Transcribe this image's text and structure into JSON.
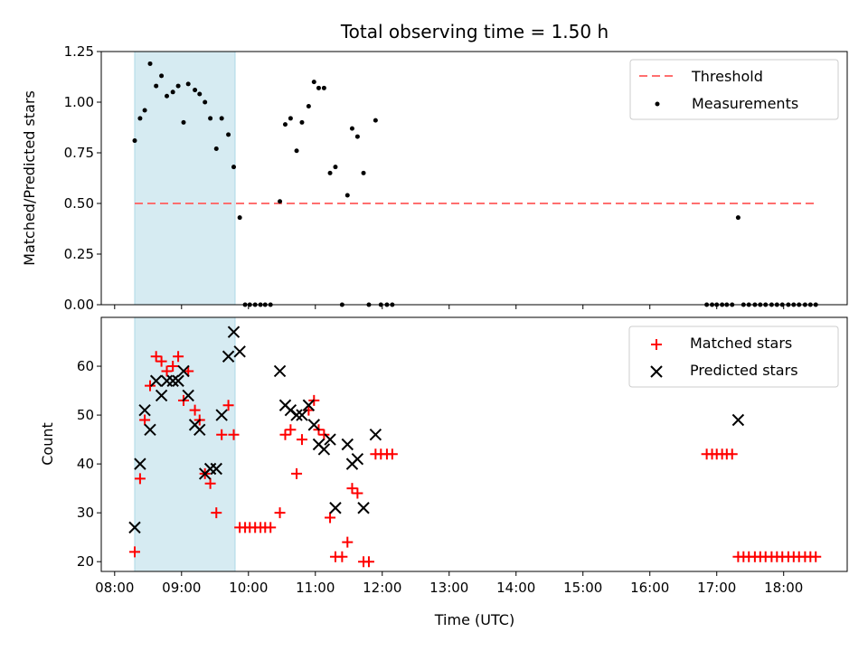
{
  "chart_data": {
    "title": "Total observing time = 1.50 h",
    "xlabel": "Time (UTC)",
    "x_ticks": [
      "08:00",
      "09:00",
      "10:00",
      "11:00",
      "12:00",
      "13:00",
      "14:00",
      "15:00",
      "16:00",
      "17:00",
      "18:00"
    ],
    "x_range_hours": [
      7.8,
      18.95
    ],
    "highlight_span_hours": [
      8.3,
      9.8
    ],
    "highlight_color": "#add8e6",
    "panels": [
      {
        "type": "scatter",
        "ylabel": "Matched/Predicted stars",
        "ylim": [
          0,
          1.25
        ],
        "y_ticks": [
          "0.00",
          "0.25",
          "0.50",
          "0.75",
          "1.00",
          "1.25"
        ],
        "threshold": {
          "name": "Threshold",
          "value": 0.5,
          "x_range": [
            8.3,
            18.5
          ],
          "color": "#ff6f6f"
        },
        "series": [
          {
            "name": "Measurements",
            "marker": "dot",
            "color": "#000000",
            "points": [
              [
                8.3,
                0.81
              ],
              [
                8.38,
                0.92
              ],
              [
                8.45,
                0.96
              ],
              [
                8.53,
                1.19
              ],
              [
                8.62,
                1.08
              ],
              [
                8.7,
                1.13
              ],
              [
                8.78,
                1.03
              ],
              [
                8.87,
                1.05
              ],
              [
                8.95,
                1.08
              ],
              [
                9.03,
                0.9
              ],
              [
                9.1,
                1.09
              ],
              [
                9.2,
                1.06
              ],
              [
                9.27,
                1.04
              ],
              [
                9.35,
                1.0
              ],
              [
                9.43,
                0.92
              ],
              [
                9.52,
                0.77
              ],
              [
                9.6,
                0.92
              ],
              [
                9.7,
                0.84
              ],
              [
                9.78,
                0.68
              ],
              [
                9.87,
                0.43
              ],
              [
                9.95,
                0.0
              ],
              [
                10.02,
                0.0
              ],
              [
                10.1,
                0.0
              ],
              [
                10.18,
                0.0
              ],
              [
                10.25,
                0.0
              ],
              [
                10.33,
                0.0
              ],
              [
                10.47,
                0.51
              ],
              [
                10.55,
                0.89
              ],
              [
                10.63,
                0.92
              ],
              [
                10.72,
                0.76
              ],
              [
                10.8,
                0.9
              ],
              [
                10.9,
                0.98
              ],
              [
                10.98,
                1.1
              ],
              [
                11.05,
                1.07
              ],
              [
                11.13,
                1.07
              ],
              [
                11.22,
                0.65
              ],
              [
                11.3,
                0.68
              ],
              [
                11.4,
                0.0
              ],
              [
                11.48,
                0.54
              ],
              [
                11.55,
                0.87
              ],
              [
                11.63,
                0.83
              ],
              [
                11.72,
                0.65
              ],
              [
                11.8,
                0.0
              ],
              [
                11.9,
                0.91
              ],
              [
                11.98,
                0.0
              ],
              [
                12.07,
                0.0
              ],
              [
                12.15,
                0.0
              ],
              [
                16.85,
                0.0
              ],
              [
                16.93,
                0.0
              ],
              [
                17.0,
                0.0
              ],
              [
                17.08,
                0.0
              ],
              [
                17.15,
                0.0
              ],
              [
                17.23,
                0.0
              ],
              [
                17.32,
                0.43
              ],
              [
                17.4,
                0.0
              ],
              [
                17.48,
                0.0
              ],
              [
                17.57,
                0.0
              ],
              [
                17.65,
                0.0
              ],
              [
                17.73,
                0.0
              ],
              [
                17.82,
                0.0
              ],
              [
                17.9,
                0.0
              ],
              [
                17.98,
                0.0
              ],
              [
                18.07,
                0.0
              ],
              [
                18.15,
                0.0
              ],
              [
                18.23,
                0.0
              ],
              [
                18.32,
                0.0
              ],
              [
                18.4,
                0.0
              ],
              [
                18.48,
                0.0
              ]
            ]
          }
        ],
        "legend": {
          "position": "top-right",
          "entries": [
            "Threshold",
            "Measurements"
          ]
        }
      },
      {
        "type": "scatter",
        "ylabel": "Count",
        "ylim": [
          18,
          70
        ],
        "y_ticks": [
          "20",
          "30",
          "40",
          "50",
          "60"
        ],
        "series": [
          {
            "name": "Matched stars",
            "marker": "plus",
            "color": "#ff0000",
            "points": [
              [
                8.3,
                22
              ],
              [
                8.38,
                37
              ],
              [
                8.45,
                49
              ],
              [
                8.53,
                56
              ],
              [
                8.62,
                62
              ],
              [
                8.7,
                61
              ],
              [
                8.78,
                59
              ],
              [
                8.87,
                60
              ],
              [
                8.95,
                62
              ],
              [
                9.03,
                53
              ],
              [
                9.1,
                59
              ],
              [
                9.2,
                51
              ],
              [
                9.27,
                49
              ],
              [
                9.35,
                38
              ],
              [
                9.43,
                36
              ],
              [
                9.52,
                30
              ],
              [
                9.6,
                46
              ],
              [
                9.7,
                52
              ],
              [
                9.78,
                46
              ],
              [
                9.87,
                27
              ],
              [
                9.95,
                27
              ],
              [
                10.02,
                27
              ],
              [
                10.1,
                27
              ],
              [
                10.18,
                27
              ],
              [
                10.25,
                27
              ],
              [
                10.33,
                27
              ],
              [
                10.47,
                30
              ],
              [
                10.55,
                46
              ],
              [
                10.63,
                47
              ],
              [
                10.72,
                38
              ],
              [
                10.8,
                45
              ],
              [
                10.9,
                51
              ],
              [
                10.98,
                53
              ],
              [
                11.05,
                47
              ],
              [
                11.13,
                46
              ],
              [
                11.22,
                29
              ],
              [
                11.3,
                21
              ],
              [
                11.4,
                21
              ],
              [
                11.48,
                24
              ],
              [
                11.55,
                35
              ],
              [
                11.63,
                34
              ],
              [
                11.72,
                20
              ],
              [
                11.8,
                20
              ],
              [
                11.9,
                42
              ],
              [
                11.98,
                42
              ],
              [
                12.07,
                42
              ],
              [
                12.15,
                42
              ],
              [
                16.85,
                42
              ],
              [
                16.93,
                42
              ],
              [
                17.0,
                42
              ],
              [
                17.08,
                42
              ],
              [
                17.15,
                42
              ],
              [
                17.23,
                42
              ],
              [
                17.32,
                21
              ],
              [
                17.4,
                21
              ],
              [
                17.48,
                21
              ],
              [
                17.57,
                21
              ],
              [
                17.65,
                21
              ],
              [
                17.73,
                21
              ],
              [
                17.82,
                21
              ],
              [
                17.9,
                21
              ],
              [
                17.98,
                21
              ],
              [
                18.07,
                21
              ],
              [
                18.15,
                21
              ],
              [
                18.23,
                21
              ],
              [
                18.32,
                21
              ],
              [
                18.4,
                21
              ],
              [
                18.48,
                21
              ]
            ]
          },
          {
            "name": "Predicted stars",
            "marker": "x",
            "color": "#000000",
            "points": [
              [
                8.3,
                27
              ],
              [
                8.38,
                40
              ],
              [
                8.45,
                51
              ],
              [
                8.53,
                47
              ],
              [
                8.62,
                57
              ],
              [
                8.7,
                54
              ],
              [
                8.78,
                57
              ],
              [
                8.87,
                57
              ],
              [
                8.95,
                57
              ],
              [
                9.03,
                59
              ],
              [
                9.1,
                54
              ],
              [
                9.2,
                48
              ],
              [
                9.27,
                47
              ],
              [
                9.35,
                38
              ],
              [
                9.43,
                39
              ],
              [
                9.52,
                39
              ],
              [
                9.6,
                50
              ],
              [
                9.7,
                62
              ],
              [
                9.78,
                67
              ],
              [
                9.87,
                63
              ],
              [
                10.47,
                59
              ],
              [
                10.55,
                52
              ],
              [
                10.63,
                51
              ],
              [
                10.72,
                50
              ],
              [
                10.8,
                50
              ],
              [
                10.9,
                52
              ],
              [
                10.98,
                48
              ],
              [
                11.05,
                44
              ],
              [
                11.13,
                43
              ],
              [
                11.22,
                45
              ],
              [
                11.3,
                31
              ],
              [
                11.48,
                44
              ],
              [
                11.55,
                40
              ],
              [
                11.63,
                41
              ],
              [
                11.72,
                31
              ],
              [
                11.9,
                46
              ],
              [
                17.32,
                49
              ]
            ]
          }
        ],
        "legend": {
          "position": "top-right",
          "entries": [
            "Matched stars",
            "Predicted stars"
          ]
        }
      }
    ]
  }
}
